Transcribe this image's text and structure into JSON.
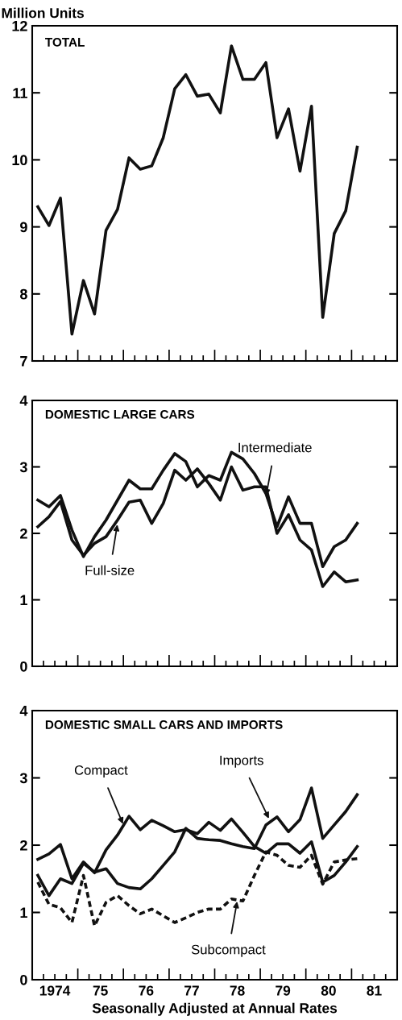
{
  "chart_data": [
    {
      "type": "line",
      "title": "TOTAL",
      "ylabel": "Million Units",
      "x": [
        "1974-02-15",
        "1974-05-15",
        "1974-08-15",
        "1974-11-15",
        "1975-02-15",
        "1975-05-15",
        "1975-08-15",
        "1975-11-15",
        "1976-02-15",
        "1976-05-15",
        "1976-08-15",
        "1976-11-15",
        "1977-02-15",
        "1977-05-15",
        "1977-08-15",
        "1977-11-15",
        "1978-02-15",
        "1978-05-15",
        "1978-08-15",
        "1978-11-15",
        "1979-02-15",
        "1979-05-15",
        "1979-08-15",
        "1979-11-15",
        "1980-02-15",
        "1980-05-15",
        "1980-08-15",
        "1980-11-15",
        "1981-02-15"
      ],
      "series": [
        {
          "color": "#111111",
          "values": [
            9.3,
            9.02,
            9.43,
            7.4,
            8.2,
            7.7,
            8.95,
            9.26,
            10.03,
            9.86,
            9.91,
            10.33,
            11.06,
            11.27,
            10.95,
            10.98,
            10.7,
            11.7,
            11.2,
            11.2,
            11.45,
            10.33,
            10.76,
            9.83,
            10.8,
            7.65,
            8.9,
            9.24,
            10.19
          ]
        }
      ],
      "xlim": [
        "1974-01-01",
        "1982-01-01"
      ],
      "ylim": [
        7,
        12
      ],
      "yticks": [
        7,
        8,
        9,
        10,
        11,
        12
      ],
      "xticks": [
        {
          "value": "1974-04-01",
          "label": null
        },
        {
          "value": "1974-07-01",
          "label": null
        },
        {
          "value": "1974-10-01",
          "label": null
        },
        {
          "value": "1975-01-01",
          "label": null
        },
        {
          "value": "1975-04-01",
          "label": null
        },
        {
          "value": "1975-07-01",
          "label": null
        },
        {
          "value": "1975-10-01",
          "label": null
        },
        {
          "value": "1976-01-01",
          "label": null
        },
        {
          "value": "1976-04-01",
          "label": null
        },
        {
          "value": "1976-07-01",
          "label": null
        },
        {
          "value": "1976-10-01",
          "label": null
        },
        {
          "value": "1977-01-01",
          "label": null
        },
        {
          "value": "1977-04-01",
          "label": null
        },
        {
          "value": "1977-07-01",
          "label": null
        },
        {
          "value": "1977-10-01",
          "label": null
        },
        {
          "value": "1978-01-01",
          "label": null
        },
        {
          "value": "1978-04-01",
          "label": null
        },
        {
          "value": "1978-07-01",
          "label": null
        },
        {
          "value": "1978-10-01",
          "label": null
        },
        {
          "value": "1979-01-01",
          "label": null
        },
        {
          "value": "1979-04-01",
          "label": null
        },
        {
          "value": "1979-07-01",
          "label": null
        },
        {
          "value": "1979-10-01",
          "label": null
        },
        {
          "value": "1980-01-01",
          "label": null
        },
        {
          "value": "1980-04-01",
          "label": null
        },
        {
          "value": "1980-07-01",
          "label": null
        },
        {
          "value": "1980-10-01",
          "label": null
        },
        {
          "value": "1981-01-01",
          "label": null
        },
        {
          "value": "1981-04-01",
          "label": null
        },
        {
          "value": "1981-07-01",
          "label": null
        },
        {
          "value": "1981-10-01",
          "label": null
        }
      ],
      "tick_labels": "y",
      "marker": "none",
      "line_style": "solid"
    },
    {
      "type": "line",
      "title": "DOMESTIC LARGE CARS",
      "x": [
        "1974-02-15",
        "1974-05-15",
        "1974-08-15",
        "1974-11-15",
        "1975-02-15",
        "1975-05-15",
        "1975-08-15",
        "1975-11-15",
        "1976-02-15",
        "1976-05-15",
        "1976-08-15",
        "1976-11-15",
        "1977-02-15",
        "1977-05-15",
        "1977-08-15",
        "1977-11-15",
        "1978-02-15",
        "1978-05-15",
        "1978-08-15",
        "1978-11-15",
        "1979-02-15",
        "1979-05-15",
        "1979-08-15",
        "1979-11-15",
        "1980-02-15",
        "1980-05-15",
        "1980-08-15",
        "1980-11-15",
        "1981-02-15"
      ],
      "series": [
        {
          "color": "#111111",
          "values": [
            2.1,
            2.25,
            2.48,
            1.9,
            1.67,
            1.85,
            1.95,
            2.2,
            2.47,
            2.5,
            2.15,
            2.45,
            2.95,
            2.8,
            2.97,
            2.75,
            2.5,
            3.0,
            2.65,
            2.7,
            2.7,
            2.0,
            2.28,
            1.9,
            1.75,
            1.2,
            1.42,
            1.27,
            1.3
          ]
        },
        {
          "color": "#111111",
          "values": [
            2.5,
            2.4,
            2.57,
            2.05,
            1.65,
            1.95,
            2.2,
            2.5,
            2.8,
            2.67,
            2.67,
            2.95,
            3.2,
            3.08,
            2.7,
            2.87,
            2.8,
            3.22,
            3.12,
            2.9,
            2.6,
            2.1,
            2.55,
            2.15,
            2.15,
            1.5,
            1.8,
            1.9,
            2.15
          ]
        }
      ],
      "annotations": [
        {
          "text": "Full-size",
          "x": "1975-11-15",
          "y": 2.15
        },
        {
          "text": "Intermediate",
          "x": "1979-02-15",
          "y": 2.55
        }
      ],
      "xlim": [
        "1974-01-01",
        "1982-01-01"
      ],
      "ylim": [
        0,
        4
      ],
      "yticks": [
        0,
        1,
        2,
        3,
        4
      ],
      "xticks": [
        {
          "value": "1974-04-01",
          "label": null
        },
        {
          "value": "1974-07-01",
          "label": null
        },
        {
          "value": "1974-10-01",
          "label": null
        },
        {
          "value": "1975-01-01",
          "label": null
        },
        {
          "value": "1975-04-01",
          "label": null
        },
        {
          "value": "1975-07-01",
          "label": null
        },
        {
          "value": "1975-10-01",
          "label": null
        },
        {
          "value": "1976-01-01",
          "label": null
        },
        {
          "value": "1976-04-01",
          "label": null
        },
        {
          "value": "1976-07-01",
          "label": null
        },
        {
          "value": "1976-10-01",
          "label": null
        },
        {
          "value": "1977-01-01",
          "label": null
        },
        {
          "value": "1977-04-01",
          "label": null
        },
        {
          "value": "1977-07-01",
          "label": null
        },
        {
          "value": "1977-10-01",
          "label": null
        },
        {
          "value": "1978-01-01",
          "label": null
        },
        {
          "value": "1978-04-01",
          "label": null
        },
        {
          "value": "1978-07-01",
          "label": null
        },
        {
          "value": "1978-10-01",
          "label": null
        },
        {
          "value": "1979-01-01",
          "label": null
        },
        {
          "value": "1979-04-01",
          "label": null
        },
        {
          "value": "1979-07-01",
          "label": null
        },
        {
          "value": "1979-10-01",
          "label": null
        },
        {
          "value": "1980-01-01",
          "label": null
        },
        {
          "value": "1980-04-01",
          "label": null
        },
        {
          "value": "1980-07-01",
          "label": null
        },
        {
          "value": "1980-10-01",
          "label": null
        },
        {
          "value": "1981-01-01",
          "label": null
        },
        {
          "value": "1981-04-01",
          "label": null
        },
        {
          "value": "1981-07-01",
          "label": null
        },
        {
          "value": "1981-10-01",
          "label": null
        }
      ],
      "tick_labels": "y",
      "marker": "none",
      "line_style": "solid"
    },
    {
      "type": "line",
      "title": "DOMESTIC SMALL CARS AND IMPORTS",
      "xlabel": "Seasonally Adjusted at Annual Rates",
      "x": [
        "1974-02-15",
        "1974-05-15",
        "1974-08-15",
        "1974-11-15",
        "1975-02-15",
        "1975-05-15",
        "1975-08-15",
        "1975-11-15",
        "1976-02-15",
        "1976-05-15",
        "1976-08-15",
        "1976-11-15",
        "1977-02-15",
        "1977-05-15",
        "1977-08-15",
        "1977-11-15",
        "1978-02-15",
        "1978-05-15",
        "1978-08-15",
        "1978-11-15",
        "1979-02-15",
        "1979-05-15",
        "1979-08-15",
        "1979-11-15",
        "1980-02-15",
        "1980-05-15",
        "1980-08-15",
        "1980-11-15",
        "1981-02-15"
      ],
      "series": [
        {
          "color": "#111111",
          "values": [
            1.79,
            1.87,
            2.01,
            1.5,
            1.75,
            1.59,
            1.93,
            2.15,
            2.43,
            2.23,
            2.37,
            2.29,
            2.2,
            2.23,
            2.17,
            2.34,
            2.22,
            2.39,
            2.19,
            1.98,
            1.88,
            2.02,
            2.02,
            1.88,
            2.05,
            1.45,
            1.55,
            1.75,
            1.98
          ]
        },
        {
          "color": "#111111",
          "values": [
            1.55,
            1.25,
            1.5,
            1.43,
            1.73,
            1.6,
            1.65,
            1.43,
            1.37,
            1.35,
            1.5,
            1.7,
            1.9,
            2.25,
            2.1,
            2.08,
            2.07,
            2.02,
            1.98,
            1.95,
            2.3,
            2.42,
            2.2,
            2.38,
            2.85,
            2.1,
            2.3,
            2.5,
            2.75
          ]
        },
        {
          "color": "#111111",
          "line_style": "dotted",
          "values": [
            1.45,
            1.12,
            1.07,
            0.85,
            1.55,
            0.8,
            1.15,
            1.25,
            1.1,
            0.98,
            1.05,
            0.95,
            0.85,
            0.92,
            1.0,
            1.05,
            1.05,
            1.2,
            1.17,
            1.55,
            1.9,
            1.85,
            1.7,
            1.67,
            1.85,
            1.42,
            1.75,
            1.78,
            1.8
          ]
        }
      ],
      "annotations": [
        {
          "text": "Compact",
          "x": "1976-01-01",
          "y": 2.3
        },
        {
          "text": "Imports",
          "x": "1979-03-15",
          "y": 2.38
        },
        {
          "text": "Subcompact",
          "x": "1978-07-01",
          "y": 1.18
        }
      ],
      "xlim": [
        "1974-01-01",
        "1982-01-01"
      ],
      "ylim": [
        0,
        4
      ],
      "yticks": [
        0,
        1,
        2,
        3,
        4
      ],
      "xticks": [
        {
          "value": "1974-04-01",
          "label": null
        },
        {
          "value": "1974-07-01",
          "label": "1974"
        },
        {
          "value": "1974-10-01",
          "label": null
        },
        {
          "value": "1975-01-01",
          "label": null
        },
        {
          "value": "1975-04-01",
          "label": null
        },
        {
          "value": "1975-07-01",
          "label": "75"
        },
        {
          "value": "1975-10-01",
          "label": null
        },
        {
          "value": "1976-01-01",
          "label": null
        },
        {
          "value": "1976-04-01",
          "label": null
        },
        {
          "value": "1976-07-01",
          "label": "76"
        },
        {
          "value": "1976-10-01",
          "label": null
        },
        {
          "value": "1977-01-01",
          "label": null
        },
        {
          "value": "1977-04-01",
          "label": null
        },
        {
          "value": "1977-07-01",
          "label": "77"
        },
        {
          "value": "1977-10-01",
          "label": null
        },
        {
          "value": "1978-01-01",
          "label": null
        },
        {
          "value": "1978-04-01",
          "label": null
        },
        {
          "value": "1978-07-01",
          "label": "78"
        },
        {
          "value": "1978-10-01",
          "label": null
        },
        {
          "value": "1979-01-01",
          "label": null
        },
        {
          "value": "1979-04-01",
          "label": null
        },
        {
          "value": "1979-07-01",
          "label": "79"
        },
        {
          "value": "1979-10-01",
          "label": null
        },
        {
          "value": "1980-01-01",
          "label": null
        },
        {
          "value": "1980-04-01",
          "label": null
        },
        {
          "value": "1980-07-01",
          "label": "80"
        },
        {
          "value": "1980-10-01",
          "label": null
        },
        {
          "value": "1981-01-01",
          "label": null
        },
        {
          "value": "1981-04-01",
          "label": null
        },
        {
          "value": "1981-07-01",
          "label": "81"
        },
        {
          "value": "1981-10-01",
          "label": null
        }
      ],
      "marker": "none",
      "line_style": "solid"
    }
  ]
}
